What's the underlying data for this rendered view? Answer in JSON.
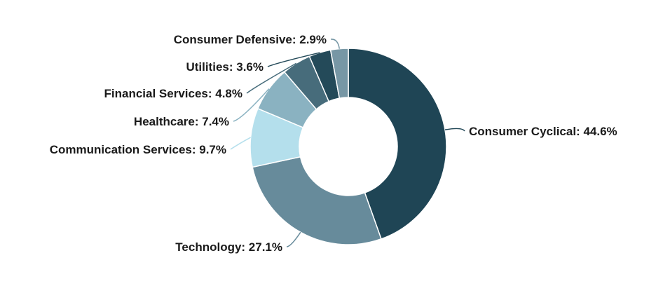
{
  "chart_data": {
    "type": "pie",
    "style": "donut",
    "title": "",
    "slices": [
      {
        "label": "Consumer Cyclical: 44.6%",
        "value": 44.6,
        "color": "#1f4555"
      },
      {
        "label": "Technology: 27.1%",
        "value": 27.1,
        "color": "#678b9b"
      },
      {
        "label": "Communication Services: 9.7%",
        "value": 9.7,
        "color": "#b4dfec"
      },
      {
        "label": "Healthcare: 7.4%",
        "value": 7.4,
        "color": "#8ab2c1"
      },
      {
        "label": "Financial Services: 4.8%",
        "value": 4.8,
        "color": "#476c7b"
      },
      {
        "label": "Utilities: 3.6%",
        "value": 3.6,
        "color": "#244a59"
      },
      {
        "label": "Consumer Defensive: 2.9%",
        "value": 2.9,
        "color": "#7797a5"
      }
    ]
  }
}
